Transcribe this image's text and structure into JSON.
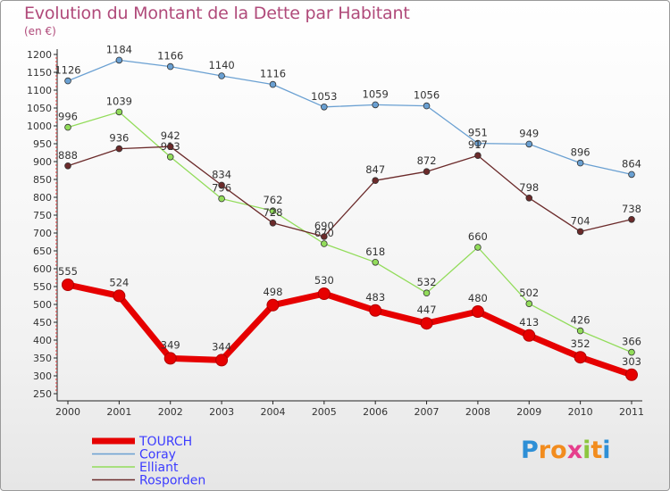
{
  "chart_data": {
    "type": "line",
    "title": "Evolution du Montant de la Dette par Habitant",
    "ylabel": "(en €)",
    "xlabel": "",
    "categories": [
      "2000",
      "2001",
      "2002",
      "2003",
      "2004",
      "2005",
      "2006",
      "2007",
      "2008",
      "2009",
      "2010",
      "2011"
    ],
    "ylim": [
      250,
      1200
    ],
    "yticks": [
      250,
      300,
      350,
      400,
      450,
      500,
      550,
      600,
      650,
      700,
      750,
      800,
      850,
      900,
      950,
      1000,
      1050,
      1100,
      1150,
      1200
    ],
    "grid": false,
    "legend_position": "bottom-left",
    "series": [
      {
        "name": "TOURCH",
        "color": "#e60000",
        "emphasis": true,
        "values": [
          555,
          524,
          349,
          344,
          498,
          530,
          483,
          447,
          480,
          413,
          352,
          303
        ]
      },
      {
        "name": "Coray",
        "color": "#6aa0d2",
        "values": [
          1126,
          1184,
          1166,
          1140,
          1116,
          1053,
          1059,
          1056,
          951,
          949,
          896,
          864
        ]
      },
      {
        "name": "Elliant",
        "color": "#92dc5a",
        "values": [
          996,
          1039,
          913,
          796,
          762,
          670,
          618,
          532,
          660,
          502,
          426,
          366
        ]
      },
      {
        "name": "Rosporden",
        "color": "#6b2a2a",
        "values": [
          888,
          936,
          942,
          834,
          728,
          690,
          847,
          872,
          917,
          798,
          704,
          738
        ]
      }
    ]
  },
  "logo": {
    "text": "Proxiti",
    "letters": [
      "P",
      "r",
      "o",
      "x",
      "i",
      "t",
      "i"
    ],
    "colors": [
      "#2e8fd6",
      "#f28c1e",
      "#f28c1e",
      "#e63e8c",
      "#8cc63f",
      "#f28c1e",
      "#2e8fd6"
    ]
  },
  "colors": {
    "title": "#b04a7a",
    "axis": "#333333",
    "legend_text": "#3c3cff"
  }
}
